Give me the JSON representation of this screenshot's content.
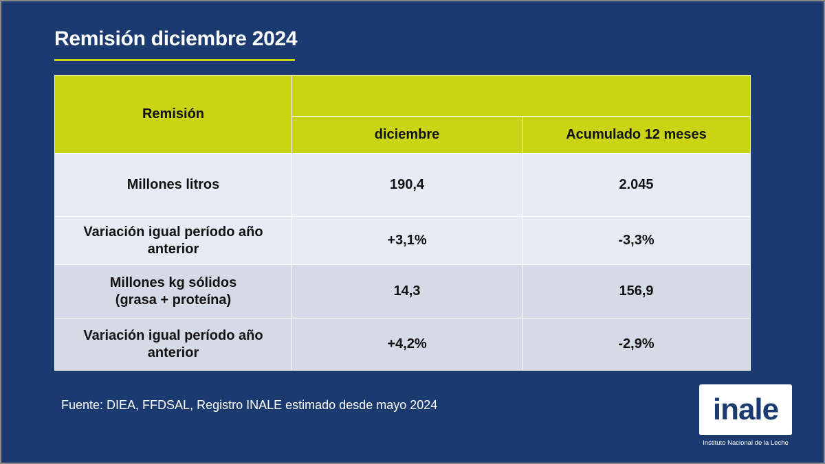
{
  "slide": {
    "title": "Remisión diciembre 2024",
    "accent_color": "#c8d414",
    "background_color": "#1b3b70"
  },
  "table": {
    "corner_header": "Remisión",
    "top_header": "",
    "columns": [
      "diciembre",
      "Acumulado 12 meses"
    ],
    "rows": [
      {
        "label_line1": "Millones litros",
        "label_line2": "",
        "values": [
          "190,4",
          "2.045"
        ]
      },
      {
        "label_line1": "Variación igual período año",
        "label_line2": "anterior",
        "values": [
          "+3,1%",
          "-3,3%"
        ]
      },
      {
        "label_line1": "Millones kg sólidos",
        "label_line2": "(grasa + proteína)",
        "values": [
          "14,3",
          "156,9"
        ]
      },
      {
        "label_line1": "Variación igual período año",
        "label_line2": "anterior",
        "values": [
          "+4,2%",
          "-2,9%"
        ]
      }
    ]
  },
  "footer": {
    "source": "Fuente: DIEA, FFDSAL, Registro INALE estimado desde mayo 2024",
    "logo_text": "inale",
    "logo_caption": "Instituto Nacional de la Leche"
  }
}
